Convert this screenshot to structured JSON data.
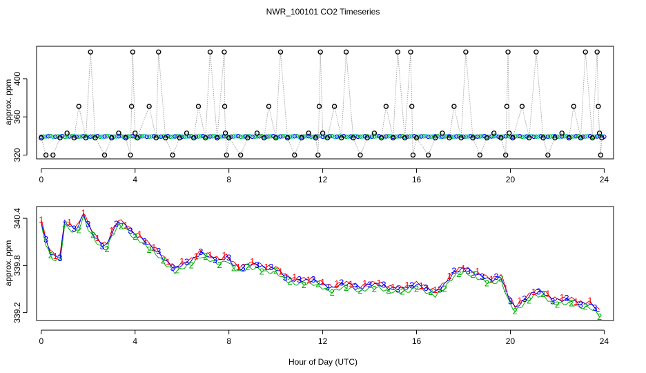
{
  "title": "NWR_100101  CO2 Timeseries",
  "xlabel": "Hour of Day (UTC)",
  "chart_data": [
    {
      "type": "line",
      "panel": "top",
      "ylabel": "approx. ppm",
      "xlim": [
        -0.2,
        24.4
      ],
      "ylim": [
        316,
        434
      ],
      "xticks": [
        0,
        4,
        8,
        12,
        16,
        20,
        24
      ],
      "yticks": [
        320,
        360,
        400
      ],
      "baseline_ppm": 339.5,
      "series": [
        {
          "name": "raw (open circles, dotted grey line)",
          "color": "#000000",
          "points": [
            [
              0.0,
              338
            ],
            [
              0.2,
              320
            ],
            [
              0.5,
              320
            ],
            [
              0.8,
              338
            ],
            [
              1.1,
              343
            ],
            [
              1.4,
              338
            ],
            [
              1.6,
              371
            ],
            [
              1.9,
              338
            ],
            [
              2.1,
              428
            ],
            [
              2.3,
              338
            ],
            [
              2.7,
              320
            ],
            [
              3.0,
              338
            ],
            [
              3.3,
              343
            ],
            [
              3.6,
              338
            ],
            [
              3.8,
              320
            ],
            [
              3.85,
              371
            ],
            [
              3.9,
              428
            ],
            [
              4.0,
              343
            ],
            [
              4.1,
              338
            ],
            [
              4.6,
              371
            ],
            [
              4.9,
              338
            ],
            [
              5.0,
              428
            ],
            [
              5.3,
              338
            ],
            [
              5.6,
              320
            ],
            [
              5.9,
              338
            ],
            [
              6.2,
              343
            ],
            [
              6.5,
              338
            ],
            [
              6.7,
              371
            ],
            [
              7.0,
              338
            ],
            [
              7.2,
              428
            ],
            [
              7.5,
              338
            ],
            [
              7.8,
              428
            ],
            [
              7.82,
              371
            ],
            [
              7.85,
              343
            ],
            [
              7.9,
              320
            ],
            [
              8.0,
              338
            ],
            [
              8.5,
              320
            ],
            [
              8.8,
              338
            ],
            [
              9.2,
              343
            ],
            [
              9.5,
              338
            ],
            [
              9.7,
              371
            ],
            [
              10.0,
              338
            ],
            [
              10.2,
              428
            ],
            [
              10.5,
              338
            ],
            [
              10.8,
              320
            ],
            [
              11.1,
              338
            ],
            [
              11.4,
              343
            ],
            [
              11.7,
              338
            ],
            [
              11.8,
              320
            ],
            [
              11.85,
              371
            ],
            [
              11.9,
              428
            ],
            [
              12.0,
              343
            ],
            [
              12.2,
              338
            ],
            [
              12.5,
              371
            ],
            [
              12.8,
              338
            ],
            [
              13.0,
              428
            ],
            [
              13.3,
              338
            ],
            [
              13.6,
              320
            ],
            [
              13.9,
              338
            ],
            [
              14.2,
              343
            ],
            [
              14.5,
              338
            ],
            [
              14.7,
              371
            ],
            [
              15.0,
              338
            ],
            [
              15.2,
              428
            ],
            [
              15.5,
              338
            ],
            [
              15.75,
              428
            ],
            [
              15.8,
              371
            ],
            [
              15.85,
              320
            ],
            [
              16.0,
              338
            ],
            [
              16.5,
              320
            ],
            [
              16.8,
              338
            ],
            [
              17.1,
              343
            ],
            [
              17.4,
              338
            ],
            [
              17.6,
              371
            ],
            [
              17.9,
              338
            ],
            [
              18.1,
              428
            ],
            [
              18.4,
              338
            ],
            [
              18.7,
              320
            ],
            [
              19.0,
              338
            ],
            [
              19.3,
              343
            ],
            [
              19.6,
              338
            ],
            [
              19.8,
              320
            ],
            [
              19.85,
              371
            ],
            [
              19.9,
              428
            ],
            [
              19.95,
              343
            ],
            [
              20.1,
              338
            ],
            [
              20.5,
              371
            ],
            [
              20.8,
              338
            ],
            [
              21.1,
              428
            ],
            [
              21.4,
              338
            ],
            [
              21.6,
              320
            ],
            [
              21.9,
              338
            ],
            [
              22.2,
              343
            ],
            [
              22.5,
              338
            ],
            [
              22.7,
              371
            ],
            [
              23.0,
              338
            ],
            [
              23.2,
              428
            ],
            [
              23.5,
              338
            ],
            [
              23.7,
              428
            ],
            [
              23.75,
              371
            ],
            [
              23.8,
              343
            ],
            [
              23.85,
              320
            ],
            [
              23.9,
              338
            ]
          ]
        }
      ]
    },
    {
      "type": "line",
      "panel": "bottom",
      "ylabel": "approx. ppm",
      "xlim": [
        -0.2,
        24.4
      ],
      "ylim": [
        339.1,
        340.55
      ],
      "xticks": [
        0,
        4,
        8,
        12,
        16,
        20,
        24
      ],
      "yticks": [
        339.2,
        339.8,
        340.4
      ],
      "series": [
        {
          "name": "1",
          "color": "#ff0000"
        },
        {
          "name": "2",
          "color": "#00b000"
        },
        {
          "name": "3",
          "color": "#0000ff"
        }
      ],
      "trend": [
        [
          0.0,
          340.35
        ],
        [
          0.2,
          340.1
        ],
        [
          0.4,
          339.95
        ],
        [
          0.6,
          339.9
        ],
        [
          0.8,
          339.9
        ],
        [
          1.0,
          340.35
        ],
        [
          1.2,
          340.3
        ],
        [
          1.4,
          340.25
        ],
        [
          1.6,
          340.3
        ],
        [
          1.8,
          340.45
        ],
        [
          2.0,
          340.3
        ],
        [
          2.3,
          340.15
        ],
        [
          2.6,
          340.05
        ],
        [
          2.8,
          340.05
        ],
        [
          3.0,
          340.2
        ],
        [
          3.3,
          340.35
        ],
        [
          3.6,
          340.3
        ],
        [
          3.9,
          340.2
        ],
        [
          4.2,
          340.15
        ],
        [
          4.6,
          340.05
        ],
        [
          5.0,
          339.95
        ],
        [
          5.3,
          339.85
        ],
        [
          5.7,
          339.75
        ],
        [
          6.0,
          339.8
        ],
        [
          6.4,
          339.85
        ],
        [
          6.8,
          339.95
        ],
        [
          7.2,
          339.9
        ],
        [
          7.6,
          339.85
        ],
        [
          7.9,
          339.9
        ],
        [
          8.2,
          339.8
        ],
        [
          8.5,
          339.75
        ],
        [
          8.8,
          339.8
        ],
        [
          9.2,
          339.8
        ],
        [
          9.6,
          339.75
        ],
        [
          10.0,
          339.75
        ],
        [
          10.4,
          339.65
        ],
        [
          10.8,
          339.6
        ],
        [
          11.2,
          339.6
        ],
        [
          11.6,
          339.6
        ],
        [
          12.0,
          339.55
        ],
        [
          12.4,
          339.5
        ],
        [
          12.8,
          339.55
        ],
        [
          13.2,
          339.55
        ],
        [
          13.6,
          339.5
        ],
        [
          14.0,
          339.55
        ],
        [
          14.4,
          339.55
        ],
        [
          14.8,
          339.5
        ],
        [
          15.2,
          339.5
        ],
        [
          15.6,
          339.5
        ],
        [
          16.0,
          339.55
        ],
        [
          16.4,
          339.5
        ],
        [
          16.8,
          339.45
        ],
        [
          17.2,
          339.55
        ],
        [
          17.6,
          339.7
        ],
        [
          18.0,
          339.75
        ],
        [
          18.4,
          339.7
        ],
        [
          18.8,
          339.65
        ],
        [
          19.2,
          339.6
        ],
        [
          19.6,
          339.65
        ],
        [
          19.9,
          339.4
        ],
        [
          20.2,
          339.25
        ],
        [
          20.6,
          339.35
        ],
        [
          21.0,
          339.45
        ],
        [
          21.4,
          339.45
        ],
        [
          21.8,
          339.35
        ],
        [
          22.2,
          339.35
        ],
        [
          22.6,
          339.35
        ],
        [
          23.0,
          339.3
        ],
        [
          23.4,
          339.3
        ],
        [
          23.8,
          339.2
        ]
      ]
    }
  ]
}
